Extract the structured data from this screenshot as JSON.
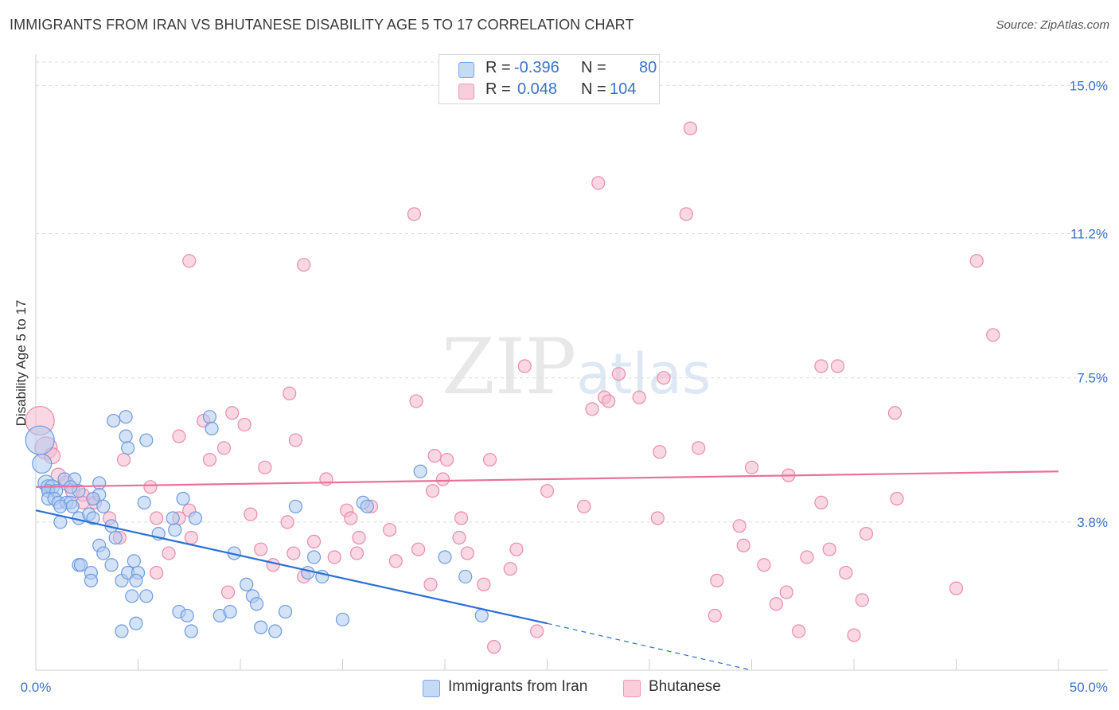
{
  "title": "IMMIGRANTS FROM IRAN VS BHUTANESE DISABILITY AGE 5 TO 17 CORRELATION CHART",
  "source": "Source: ZipAtlas.com",
  "watermark": {
    "zip": "ZIP",
    "atlas": "atlas"
  },
  "legend": {
    "rows": [
      {
        "r_label": "R =",
        "r_value": "-0.396",
        "n_label": "N =",
        "n_value": "80",
        "color": "#aecbf0"
      },
      {
        "r_label": "R =",
        "r_value": "0.048",
        "n_label": "N =",
        "n_value": "104",
        "color": "#f6b8cc"
      }
    ]
  },
  "bottom_legend": [
    {
      "label": "Immigrants from Iran",
      "color": "#aecbf0"
    },
    {
      "label": "Bhutanese",
      "color": "#f6b8cc"
    }
  ],
  "chart_data": {
    "type": "scatter",
    "title": "IMMIGRANTS FROM IRAN VS BHUTANESE DISABILITY AGE 5 TO 17 CORRELATION CHART",
    "xlabel": "",
    "ylabel": "Disability Age 5 to 17",
    "xlim": [
      0,
      50
    ],
    "ylim": [
      0,
      15.6
    ],
    "x_tick_labels": [
      "0.0%",
      "50.0%"
    ],
    "y_ticks": [
      3.8,
      7.5,
      11.2,
      15.0
    ],
    "y_tick_labels": [
      "3.8%",
      "7.5%",
      "11.2%",
      "15.0%"
    ],
    "grid": true,
    "colors": {
      "blue_point": "#aecbf0",
      "blue_edge": "#6d9be0",
      "blue_line": "#2a6fd6",
      "pink_point": "#f6b8cc",
      "pink_edge": "#ea8aab",
      "pink_line": "#e8719b",
      "tick_text": "#3a72c8"
    },
    "series": [
      {
        "name": "Immigrants from Iran",
        "trend": {
          "x0": 0,
          "y0": 4.1,
          "x1": 25,
          "y1": 1.2,
          "dashed_to_x": 35,
          "dashed_to_y": 0.0
        },
        "points": [
          [
            0.2,
            5.9,
            18
          ],
          [
            0.3,
            5.3,
            12
          ],
          [
            0.5,
            4.8,
            10
          ],
          [
            0.6,
            4.7,
            9
          ],
          [
            0.8,
            4.7,
            9
          ],
          [
            0.6,
            4.6,
            8
          ],
          [
            1.0,
            4.6,
            8
          ],
          [
            1.4,
            4.9,
            8
          ],
          [
            1.9,
            4.9,
            8
          ],
          [
            0.6,
            4.4,
            8
          ],
          [
            0.9,
            4.4,
            8
          ],
          [
            1.1,
            4.3,
            8
          ],
          [
            1.5,
            4.3,
            8
          ],
          [
            1.7,
            4.3,
            8
          ],
          [
            1.2,
            4.2,
            8
          ],
          [
            1.8,
            4.2,
            8
          ],
          [
            2.1,
            4.6,
            8
          ],
          [
            1.7,
            4.7,
            8
          ],
          [
            3.1,
            4.8,
            8
          ],
          [
            3.1,
            4.5,
            8
          ],
          [
            2.8,
            4.4,
            8
          ],
          [
            3.3,
            4.2,
            8
          ],
          [
            1.2,
            3.8,
            8
          ],
          [
            2.1,
            3.9,
            8
          ],
          [
            2.6,
            4.0,
            8
          ],
          [
            2.8,
            3.9,
            8
          ],
          [
            3.7,
            3.7,
            8
          ],
          [
            3.9,
            3.4,
            8
          ],
          [
            3.1,
            3.2,
            8
          ],
          [
            3.3,
            3.0,
            8
          ],
          [
            2.1,
            2.7,
            8
          ],
          [
            2.2,
            2.7,
            8
          ],
          [
            2.7,
            2.5,
            8
          ],
          [
            3.7,
            2.7,
            8
          ],
          [
            4.2,
            2.3,
            8
          ],
          [
            2.7,
            2.3,
            8
          ],
          [
            4.5,
            2.5,
            8
          ],
          [
            4.8,
            2.8,
            8
          ],
          [
            5.0,
            2.5,
            8
          ],
          [
            4.9,
            2.3,
            8
          ],
          [
            4.7,
            1.9,
            8
          ],
          [
            5.4,
            1.9,
            8
          ],
          [
            3.8,
            6.4,
            8
          ],
          [
            4.4,
            6.5,
            8
          ],
          [
            4.4,
            6.0,
            8
          ],
          [
            4.5,
            5.7,
            8
          ],
          [
            5.4,
            5.9,
            8
          ],
          [
            5.3,
            4.3,
            8
          ],
          [
            6.0,
            3.5,
            8
          ],
          [
            6.8,
            3.6,
            8
          ],
          [
            7.2,
            4.4,
            8
          ],
          [
            6.7,
            3.9,
            8
          ],
          [
            4.2,
            1.0,
            8
          ],
          [
            4.9,
            1.2,
            8
          ],
          [
            7.0,
            1.5,
            8
          ],
          [
            7.4,
            1.4,
            8
          ],
          [
            7.6,
            1.0,
            8
          ],
          [
            8.5,
            6.5,
            8
          ],
          [
            9.0,
            1.4,
            8
          ],
          [
            9.5,
            1.5,
            8
          ],
          [
            9.7,
            3.0,
            8
          ],
          [
            10.3,
            2.2,
            8
          ],
          [
            10.6,
            1.9,
            8
          ],
          [
            10.8,
            1.7,
            8
          ],
          [
            11.0,
            1.1,
            8
          ],
          [
            11.7,
            1.0,
            8
          ],
          [
            12.2,
            1.5,
            8
          ],
          [
            12.7,
            4.2,
            8
          ],
          [
            13.3,
            2.5,
            8
          ],
          [
            13.6,
            2.9,
            8
          ],
          [
            14.0,
            2.4,
            8
          ],
          [
            15.0,
            1.3,
            8
          ],
          [
            16.0,
            4.3,
            8
          ],
          [
            16.2,
            4.2,
            8
          ],
          [
            18.8,
            5.1,
            8
          ],
          [
            20.0,
            2.9,
            8
          ],
          [
            21.0,
            2.4,
            8
          ],
          [
            21.8,
            1.4,
            8
          ],
          [
            7.8,
            3.9,
            8
          ],
          [
            8.6,
            6.2,
            8
          ]
        ]
      },
      {
        "name": "Bhutanese",
        "trend": {
          "x0": 0,
          "y0": 4.7,
          "x1": 50,
          "y1": 5.1
        },
        "points": [
          [
            0.2,
            6.4,
            18
          ],
          [
            0.5,
            5.7,
            14
          ],
          [
            0.8,
            5.5,
            10
          ],
          [
            1.1,
            5.0,
            9
          ],
          [
            1.5,
            4.8,
            9
          ],
          [
            1.8,
            4.6,
            9
          ],
          [
            2.3,
            4.5,
            8
          ],
          [
            2.8,
            4.4,
            8
          ],
          [
            2.3,
            4.3,
            8
          ],
          [
            2.9,
            4.3,
            8
          ],
          [
            3.6,
            3.9,
            8
          ],
          [
            4.1,
            3.4,
            8
          ],
          [
            4.3,
            5.4,
            8
          ],
          [
            5.6,
            4.7,
            8
          ],
          [
            5.9,
            3.9,
            8
          ],
          [
            5.9,
            2.5,
            8
          ],
          [
            6.5,
            3.0,
            8
          ],
          [
            7.0,
            3.9,
            8
          ],
          [
            7.0,
            6.0,
            8
          ],
          [
            7.5,
            4.1,
            8
          ],
          [
            7.6,
            3.4,
            8
          ],
          [
            8.2,
            6.4,
            8
          ],
          [
            8.5,
            5.4,
            8
          ],
          [
            9.2,
            5.7,
            8
          ],
          [
            9.4,
            2.0,
            8
          ],
          [
            9.6,
            6.6,
            8
          ],
          [
            10.2,
            6.3,
            8
          ],
          [
            10.5,
            4.0,
            8
          ],
          [
            11.0,
            3.1,
            8
          ],
          [
            11.2,
            5.2,
            8
          ],
          [
            11.6,
            2.7,
            8
          ],
          [
            12.3,
            3.8,
            8
          ],
          [
            12.7,
            5.9,
            8
          ],
          [
            13.1,
            2.4,
            8
          ],
          [
            13.6,
            3.3,
            8
          ],
          [
            14.2,
            4.9,
            8
          ],
          [
            14.6,
            2.9,
            8
          ],
          [
            15.2,
            4.1,
            8
          ],
          [
            15.4,
            3.9,
            8
          ],
          [
            15.7,
            3.0,
            8
          ],
          [
            15.8,
            3.4,
            8
          ],
          [
            16.4,
            4.2,
            8
          ],
          [
            17.3,
            3.6,
            8
          ],
          [
            17.6,
            2.8,
            8
          ],
          [
            18.6,
            6.9,
            8
          ],
          [
            18.7,
            3.1,
            8
          ],
          [
            19.3,
            2.2,
            8
          ],
          [
            19.4,
            4.6,
            8
          ],
          [
            19.5,
            5.5,
            8
          ],
          [
            19.9,
            4.9,
            8
          ],
          [
            20.1,
            5.4,
            8
          ],
          [
            20.7,
            3.4,
            8
          ],
          [
            20.8,
            3.9,
            8
          ],
          [
            21.1,
            3.0,
            8
          ],
          [
            21.9,
            2.2,
            8
          ],
          [
            22.4,
            0.6,
            8
          ],
          [
            23.2,
            2.6,
            8
          ],
          [
            23.9,
            7.8,
            8
          ],
          [
            25.0,
            4.6,
            8
          ],
          [
            26.8,
            4.2,
            8
          ],
          [
            27.2,
            6.7,
            8
          ],
          [
            27.5,
            12.5,
            8
          ],
          [
            28.5,
            7.6,
            8
          ],
          [
            29.5,
            7.0,
            8
          ],
          [
            30.4,
            3.9,
            8
          ],
          [
            30.5,
            5.6,
            8
          ],
          [
            31.8,
            11.7,
            8
          ],
          [
            32.0,
            13.9,
            8
          ],
          [
            32.4,
            5.7,
            8
          ],
          [
            33.3,
            2.3,
            8
          ],
          [
            34.4,
            3.7,
            8
          ],
          [
            34.6,
            3.2,
            8
          ],
          [
            35.0,
            5.2,
            8
          ],
          [
            35.6,
            2.7,
            8
          ],
          [
            36.2,
            1.7,
            8
          ],
          [
            36.8,
            5.0,
            8
          ],
          [
            37.3,
            1.0,
            8
          ],
          [
            37.7,
            2.9,
            8
          ],
          [
            38.4,
            4.3,
            8
          ],
          [
            38.8,
            3.1,
            8
          ],
          [
            39.2,
            7.8,
            8
          ],
          [
            39.6,
            2.5,
            8
          ],
          [
            40.0,
            0.9,
            8
          ],
          [
            40.4,
            1.8,
            8
          ],
          [
            40.6,
            3.5,
            8
          ],
          [
            42.0,
            6.6,
            8
          ],
          [
            45.0,
            2.1,
            8
          ],
          [
            46.0,
            10.5,
            8
          ],
          [
            46.8,
            8.6,
            8
          ],
          [
            36.7,
            2.0,
            8
          ],
          [
            18.5,
            11.7,
            8
          ],
          [
            13.1,
            10.4,
            8
          ],
          [
            7.5,
            10.5,
            8
          ],
          [
            12.4,
            7.1,
            8
          ],
          [
            27.8,
            7.0,
            8
          ],
          [
            28.0,
            6.9,
            8
          ],
          [
            30.7,
            7.5,
            8
          ],
          [
            24.5,
            1.0,
            8
          ],
          [
            22.2,
            5.4,
            8
          ],
          [
            33.2,
            1.4,
            8
          ],
          [
            38.4,
            7.8,
            8
          ],
          [
            12.6,
            3.0,
            8
          ],
          [
            42.1,
            4.4,
            8
          ],
          [
            23.5,
            3.1,
            8
          ]
        ]
      }
    ]
  }
}
